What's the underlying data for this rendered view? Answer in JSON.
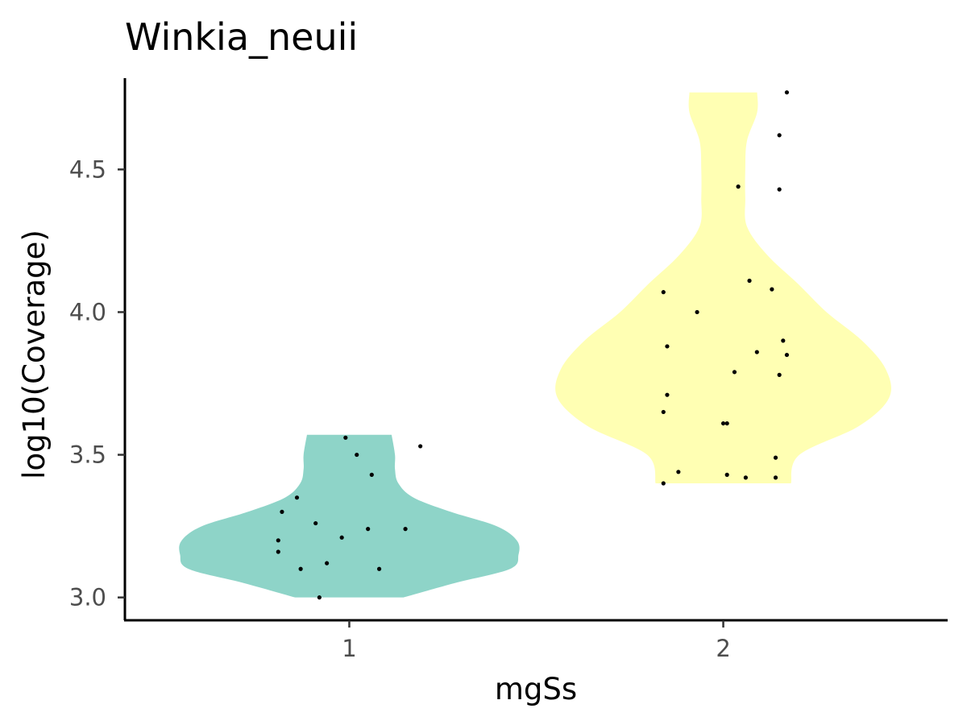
{
  "chart_data": {
    "type": "violin",
    "title": "Winkia_neuii",
    "xlabel": "mgSs",
    "ylabel": "log10(Coverage)",
    "categories": [
      "1",
      "2"
    ],
    "y_ticks": [
      "3.0",
      "3.5",
      "4.0",
      "4.5"
    ],
    "ylim": [
      2.92,
      4.82
    ],
    "grid": false,
    "legend": "none",
    "series": [
      {
        "category": "1",
        "color": "#8ED4C8",
        "ymin": 3.0,
        "ymax": 3.57,
        "density": [
          [
            3.0,
            0.32
          ],
          [
            3.05,
            0.62
          ],
          [
            3.1,
            0.95
          ],
          [
            3.15,
            1.0
          ],
          [
            3.2,
            0.99
          ],
          [
            3.25,
            0.87
          ],
          [
            3.3,
            0.6
          ],
          [
            3.35,
            0.38
          ],
          [
            3.4,
            0.29
          ],
          [
            3.45,
            0.27
          ],
          [
            3.5,
            0.27
          ],
          [
            3.57,
            0.25
          ]
        ],
        "points": [
          [
            0.99,
            3.56
          ],
          [
            1.02,
            3.5
          ],
          [
            1.19,
            3.53
          ],
          [
            1.06,
            3.43
          ],
          [
            0.86,
            3.35
          ],
          [
            0.82,
            3.3
          ],
          [
            0.91,
            3.26
          ],
          [
            1.05,
            3.24
          ],
          [
            1.15,
            3.24
          ],
          [
            0.81,
            3.2
          ],
          [
            0.98,
            3.21
          ],
          [
            0.81,
            3.16
          ],
          [
            0.94,
            3.12
          ],
          [
            0.87,
            3.1
          ],
          [
            1.08,
            3.1
          ],
          [
            0.92,
            3.0
          ]
        ]
      },
      {
        "category": "2",
        "color": "#FFFFB3",
        "ymin": 3.4,
        "ymax": 4.77,
        "density": [
          [
            3.4,
            0.4
          ],
          [
            3.5,
            0.45
          ],
          [
            3.6,
            0.8
          ],
          [
            3.7,
            0.98
          ],
          [
            3.8,
            0.96
          ],
          [
            3.9,
            0.82
          ],
          [
            4.0,
            0.61
          ],
          [
            4.1,
            0.44
          ],
          [
            4.2,
            0.26
          ],
          [
            4.3,
            0.14
          ],
          [
            4.4,
            0.13
          ],
          [
            4.5,
            0.13
          ],
          [
            4.6,
            0.14
          ],
          [
            4.7,
            0.2
          ],
          [
            4.77,
            0.2
          ]
        ],
        "points": [
          [
            2.17,
            4.77
          ],
          [
            2.15,
            4.62
          ],
          [
            2.04,
            4.44
          ],
          [
            2.15,
            4.43
          ],
          [
            2.07,
            4.11
          ],
          [
            2.13,
            4.08
          ],
          [
            1.84,
            4.07
          ],
          [
            1.93,
            4.0
          ],
          [
            2.16,
            3.9
          ],
          [
            1.85,
            3.88
          ],
          [
            2.09,
            3.86
          ],
          [
            2.17,
            3.85
          ],
          [
            2.03,
            3.79
          ],
          [
            2.15,
            3.78
          ],
          [
            1.85,
            3.71
          ],
          [
            1.84,
            3.65
          ],
          [
            2.01,
            3.61
          ],
          [
            2.0,
            3.61
          ],
          [
            2.14,
            3.49
          ],
          [
            1.88,
            3.44
          ],
          [
            2.01,
            3.43
          ],
          [
            2.06,
            3.42
          ],
          [
            2.14,
            3.42
          ],
          [
            1.84,
            3.4
          ]
        ]
      }
    ]
  }
}
